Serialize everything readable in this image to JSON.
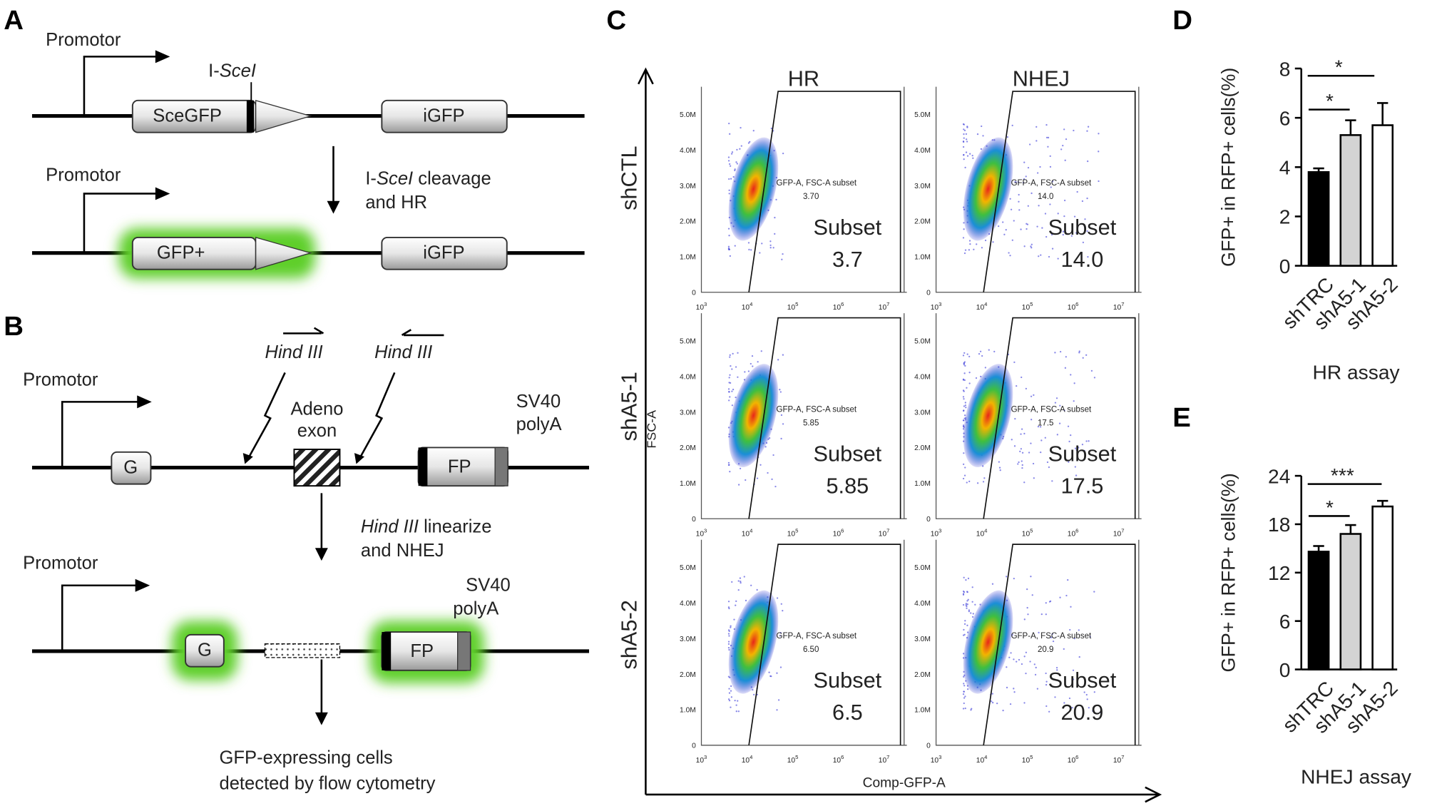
{
  "panels": [
    "A",
    "B",
    "C",
    "D",
    "E"
  ],
  "panel_a": {
    "promoter_top": "Promotor",
    "promoter_bottom": "Promotor",
    "site_prefix": "I-",
    "site_name": "SceI",
    "box_sce": "SceGFP",
    "box_igfp_top": "iGFP",
    "box_gfp": "GFP+",
    "box_igfp_bottom": "iGFP",
    "step_prefix": "I-",
    "step_name": "SceI",
    "step_rest": " cleavage",
    "step_line2": "and HR"
  },
  "panel_b": {
    "promoter_top": "Promotor",
    "promoter_bottom": "Promotor",
    "site_left": "Hind III",
    "site_right": "Hind III",
    "exon_line1": "Adeno",
    "exon_line2": "exon",
    "polya_top_line1": "SV40",
    "polya_top_line2": "polyA",
    "polya_bottom_line1": "SV40",
    "polya_bottom_line2": "polyA",
    "box_g_top": "G",
    "box_fp_top": "FP",
    "box_g_bottom": "G",
    "box_fp_bottom": "FP",
    "step_name": "Hind III",
    "step_rest": " linearize",
    "step_line2": "and NHEJ",
    "result_line1": "GFP-expressing  cells",
    "result_line2": "detected by flow cytometry"
  },
  "flow": {
    "columns": [
      "HR",
      "NHEJ"
    ],
    "rows": [
      "shCTL",
      "shA5-1",
      "shA5-2"
    ],
    "y_label": "FSC-A",
    "x_label": "Comp-GFP-A",
    "y_ticks": [
      "5.0M",
      "4.0M",
      "3.0M",
      "2.0M",
      "1.0M",
      0
    ],
    "x_tick_base": "10",
    "x_tick_exponents": [
      3,
      4,
      5,
      6,
      7
    ],
    "plots": [
      {
        "gate_label": "GFP-A, FSC-A subset",
        "gate_value": "3.70",
        "subset_label": "Subset",
        "subset_value": "3.7"
      },
      {
        "gate_label": "GFP-A, FSC-A subset",
        "gate_value": "14.0",
        "subset_label": "Subset",
        "subset_value": "14.0"
      },
      {
        "gate_label": "GFP-A, FSC-A subset",
        "gate_value": "5.85",
        "subset_label": "Subset",
        "subset_value": "5.85"
      },
      {
        "gate_label": "GFP-A, FSC-A subset",
        "gate_value": "17.5",
        "subset_label": "Subset",
        "subset_value": "17.5"
      },
      {
        "gate_label": "GFP-A, FSC-A subset",
        "gate_value": "6.50",
        "subset_label": "Subset",
        "subset_value": "6.5"
      },
      {
        "gate_label": "GFP-A, FSC-A subset",
        "gate_value": "20.9",
        "subset_label": "Subset",
        "subset_value": "20.9"
      }
    ]
  },
  "chart_data": [
    {
      "type": "bar",
      "y_label": "GFP+ in RFP+ cells(%)",
      "x_label": "HR assay",
      "categories": [
        "shTRC",
        "shA5-1",
        "shA5-2"
      ],
      "values": [
        3.8,
        5.3,
        5.7
      ],
      "errors": [
        0.15,
        0.6,
        0.9
      ],
      "colors": [
        "#000000",
        "#d4d4d4",
        "#ffffff"
      ],
      "ylim": [
        0,
        8
      ],
      "yticks": [
        0,
        2,
        4,
        6,
        8
      ],
      "annotations": [
        "*",
        "*"
      ]
    },
    {
      "type": "bar",
      "y_label": "GFP+ in RFP+ cells(%)",
      "x_label": "NHEJ assay",
      "categories": [
        "shTRC",
        "shA5-1",
        "shA5-2"
      ],
      "values": [
        14.6,
        16.8,
        20.2
      ],
      "errors": [
        0.7,
        1.1,
        0.7
      ],
      "colors": [
        "#000000",
        "#d4d4d4",
        "#ffffff"
      ],
      "ylim": [
        0,
        24
      ],
      "yticks": [
        0,
        6,
        12,
        18,
        24
      ],
      "annotations": [
        "***",
        "*"
      ]
    }
  ]
}
